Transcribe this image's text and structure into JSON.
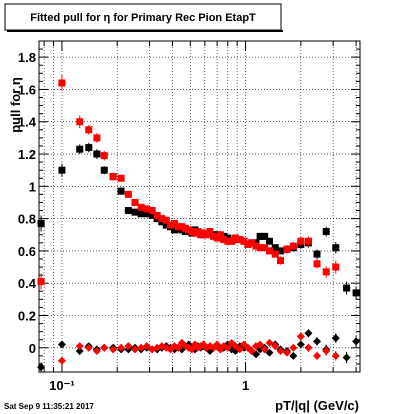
{
  "chart_data": {
    "type": "scatter",
    "title": "Fitted pull for  η for Primary Rec Pion EtapT",
    "xlabel": "pT/|q| (GeV/c)",
    "ylabel": "pull for η",
    "x_scale": "log",
    "xlim": [
      0.075,
      4.2
    ],
    "ylim": [
      -0.15,
      1.9
    ],
    "grid": true,
    "x_ticks": [
      {
        "value": 0.1,
        "label": "10⁻¹"
      },
      {
        "value": 1,
        "label": "1"
      }
    ],
    "y_ticks": [
      {
        "value": 0,
        "label": "0"
      },
      {
        "value": 0.2,
        "label": "0.2"
      },
      {
        "value": 0.4,
        "label": "0.4"
      },
      {
        "value": 0.6,
        "label": "0.6"
      },
      {
        "value": 0.8,
        "label": "0.8"
      },
      {
        "value": 1,
        "label": "1"
      },
      {
        "value": 1.2,
        "label": "1.2"
      },
      {
        "value": 1.4,
        "label": "1.4"
      },
      {
        "value": 1.6,
        "label": "1.6"
      },
      {
        "value": 1.8,
        "label": "1.8"
      }
    ],
    "series": [
      {
        "marker": "square",
        "color": "#000000",
        "x": [
          0.077,
          0.1,
          0.125,
          0.14,
          0.155,
          0.17,
          0.19,
          0.21,
          0.23,
          0.25,
          0.27,
          0.29,
          0.31,
          0.33,
          0.35,
          0.37,
          0.39,
          0.41,
          0.43,
          0.45,
          0.47,
          0.49,
          0.51,
          0.53,
          0.55,
          0.57,
          0.59,
          0.61,
          0.64,
          0.67,
          0.7,
          0.73,
          0.76,
          0.8,
          0.84,
          0.88,
          0.93,
          0.98,
          1.03,
          1.08,
          1.14,
          1.2,
          1.27,
          1.35,
          1.45,
          1.55,
          1.68,
          1.82,
          2.0,
          2.2,
          2.45,
          2.75,
          3.1,
          3.55,
          4.0
        ],
        "values": [
          0.77,
          1.1,
          1.23,
          1.24,
          1.2,
          1.1,
          1.06,
          0.97,
          0.85,
          0.84,
          0.83,
          0.83,
          0.82,
          0.8,
          0.78,
          0.76,
          0.75,
          0.73,
          0.74,
          0.73,
          0.72,
          0.72,
          0.71,
          0.73,
          0.72,
          0.71,
          0.7,
          0.71,
          0.71,
          0.7,
          0.7,
          0.68,
          0.69,
          0.68,
          0.66,
          0.67,
          0.67,
          0.66,
          0.64,
          0.65,
          0.65,
          0.69,
          0.69,
          0.66,
          0.62,
          0.6,
          0.61,
          0.62,
          0.64,
          0.65,
          0.58,
          0.72,
          0.62,
          0.37,
          0.34
        ],
        "errors": [
          0.05,
          0.04,
          0.03,
          0.03,
          0.03,
          0.025,
          0.02,
          0.02,
          0.02,
          0.02,
          0.02,
          0.015,
          0.015,
          0.015,
          0.015,
          0.015,
          0.015,
          0.015,
          0.015,
          0.015,
          0.015,
          0.015,
          0.015,
          0.015,
          0.015,
          0.015,
          0.015,
          0.015,
          0.015,
          0.015,
          0.015,
          0.015,
          0.015,
          0.015,
          0.015,
          0.015,
          0.015,
          0.015,
          0.02,
          0.02,
          0.02,
          0.02,
          0.02,
          0.02,
          0.02,
          0.02,
          0.025,
          0.025,
          0.025,
          0.03,
          0.03,
          0.03,
          0.035,
          0.04,
          0.04
        ]
      },
      {
        "marker": "square",
        "color": "#ff0000",
        "x": [
          0.077,
          0.1,
          0.125,
          0.14,
          0.155,
          0.17,
          0.19,
          0.21,
          0.23,
          0.25,
          0.27,
          0.29,
          0.31,
          0.33,
          0.35,
          0.37,
          0.39,
          0.41,
          0.43,
          0.45,
          0.47,
          0.49,
          0.51,
          0.53,
          0.55,
          0.57,
          0.59,
          0.61,
          0.64,
          0.67,
          0.7,
          0.73,
          0.76,
          0.8,
          0.84,
          0.88,
          0.93,
          0.98,
          1.03,
          1.08,
          1.14,
          1.2,
          1.27,
          1.35,
          1.45,
          1.55,
          1.68,
          1.82,
          2.0,
          2.2,
          2.45,
          2.75,
          3.1
        ],
        "values": [
          0.41,
          1.64,
          1.4,
          1.35,
          1.3,
          1.19,
          1.06,
          1.05,
          0.95,
          0.9,
          0.87,
          0.86,
          0.85,
          0.82,
          0.8,
          0.79,
          0.76,
          0.77,
          0.75,
          0.75,
          0.74,
          0.73,
          0.72,
          0.71,
          0.72,
          0.7,
          0.71,
          0.7,
          0.72,
          0.69,
          0.68,
          0.7,
          0.67,
          0.66,
          0.66,
          0.68,
          0.67,
          0.66,
          0.64,
          0.65,
          0.63,
          0.62,
          0.62,
          0.6,
          0.58,
          0.54,
          0.61,
          0.63,
          0.66,
          0.66,
          0.52,
          0.47,
          0.5
        ],
        "errors": [
          0.05,
          0.05,
          0.04,
          0.03,
          0.03,
          0.03,
          0.025,
          0.02,
          0.02,
          0.02,
          0.02,
          0.015,
          0.015,
          0.015,
          0.015,
          0.015,
          0.015,
          0.015,
          0.015,
          0.015,
          0.015,
          0.015,
          0.015,
          0.015,
          0.015,
          0.015,
          0.015,
          0.015,
          0.015,
          0.015,
          0.015,
          0.015,
          0.015,
          0.015,
          0.015,
          0.015,
          0.015,
          0.015,
          0.02,
          0.02,
          0.02,
          0.02,
          0.02,
          0.02,
          0.02,
          0.025,
          0.025,
          0.025,
          0.03,
          0.03,
          0.03,
          0.035,
          0.04
        ]
      },
      {
        "marker": "diamond",
        "color": "#000000",
        "x": [
          0.077,
          0.1,
          0.125,
          0.14,
          0.155,
          0.17,
          0.19,
          0.21,
          0.23,
          0.25,
          0.27,
          0.29,
          0.31,
          0.33,
          0.35,
          0.37,
          0.39,
          0.41,
          0.43,
          0.45,
          0.47,
          0.49,
          0.51,
          0.53,
          0.55,
          0.57,
          0.59,
          0.61,
          0.64,
          0.67,
          0.7,
          0.73,
          0.76,
          0.8,
          0.84,
          0.88,
          0.93,
          0.98,
          1.03,
          1.08,
          1.14,
          1.2,
          1.27,
          1.35,
          1.45,
          1.55,
          1.68,
          1.82,
          2.0,
          2.2,
          2.45,
          2.75,
          3.1,
          3.55,
          4.0
        ],
        "values": [
          -0.12,
          0.02,
          -0.02,
          0.01,
          -0.01,
          0.0,
          0.0,
          -0.01,
          -0.01,
          0.0,
          -0.01,
          0.0,
          -0.01,
          -0.01,
          0.0,
          0.01,
          0.0,
          -0.01,
          0.0,
          -0.01,
          0.01,
          0.02,
          0.0,
          -0.01,
          0.01,
          0.0,
          0.01,
          0.0,
          -0.02,
          0.0,
          0.01,
          -0.01,
          0.0,
          0.02,
          -0.01,
          -0.02,
          0.01,
          0.0,
          0.0,
          -0.02,
          -0.04,
          -0.01,
          0.0,
          -0.03,
          0.02,
          -0.01,
          -0.02,
          -0.05,
          0.02,
          0.09,
          0.04,
          -0.01,
          0.06,
          -0.06,
          0.04
        ],
        "errors": [
          0.03,
          0.02,
          0.02,
          0.02,
          0.015,
          0.015,
          0.015,
          0.015,
          0.015,
          0.01,
          0.01,
          0.01,
          0.01,
          0.01,
          0.01,
          0.01,
          0.01,
          0.01,
          0.01,
          0.01,
          0.01,
          0.01,
          0.01,
          0.01,
          0.01,
          0.01,
          0.01,
          0.01,
          0.01,
          0.01,
          0.01,
          0.01,
          0.01,
          0.01,
          0.01,
          0.01,
          0.015,
          0.015,
          0.015,
          0.015,
          0.015,
          0.015,
          0.015,
          0.015,
          0.02,
          0.02,
          0.02,
          0.02,
          0.025,
          0.025,
          0.025,
          0.03,
          0.03,
          0.035,
          0.035
        ]
      },
      {
        "marker": "diamond",
        "color": "#ff0000",
        "x": [
          0.1,
          0.125,
          0.14,
          0.155,
          0.17,
          0.19,
          0.21,
          0.23,
          0.25,
          0.27,
          0.29,
          0.31,
          0.33,
          0.35,
          0.37,
          0.39,
          0.41,
          0.43,
          0.45,
          0.47,
          0.49,
          0.51,
          0.53,
          0.55,
          0.57,
          0.59,
          0.61,
          0.64,
          0.67,
          0.7,
          0.73,
          0.76,
          0.8,
          0.84,
          0.88,
          0.93,
          0.98,
          1.03,
          1.08,
          1.14,
          1.2,
          1.27,
          1.35,
          1.45,
          1.55,
          1.68,
          1.82,
          2.0,
          2.2,
          2.45,
          2.75,
          3.1
        ],
        "values": [
          -0.08,
          0.01,
          0.0,
          -0.02,
          0.0,
          -0.01,
          0.0,
          0.01,
          -0.01,
          0.0,
          0.01,
          -0.01,
          0.0,
          0.01,
          0.0,
          -0.01,
          0.01,
          0.0,
          0.03,
          0.01,
          0.0,
          -0.01,
          0.02,
          0.0,
          0.01,
          0.02,
          0.0,
          0.01,
          0.0,
          0.02,
          -0.01,
          0.01,
          0.0,
          0.03,
          0.01,
          -0.01,
          0.02,
          0.0,
          -0.02,
          0.01,
          0.02,
          -0.01,
          0.03,
          0.01,
          -0.02,
          -0.03,
          0.0,
          0.07,
          0.0,
          -0.05,
          -0.02,
          -0.05
        ],
        "errors": [
          0.02,
          0.02,
          0.02,
          0.015,
          0.015,
          0.015,
          0.015,
          0.015,
          0.01,
          0.01,
          0.01,
          0.01,
          0.01,
          0.01,
          0.01,
          0.01,
          0.01,
          0.01,
          0.01,
          0.01,
          0.01,
          0.01,
          0.01,
          0.01,
          0.01,
          0.01,
          0.01,
          0.01,
          0.01,
          0.01,
          0.01,
          0.01,
          0.01,
          0.01,
          0.01,
          0.015,
          0.015,
          0.015,
          0.015,
          0.015,
          0.015,
          0.015,
          0.015,
          0.02,
          0.02,
          0.02,
          0.02,
          0.025,
          0.025,
          0.025,
          0.03,
          0.03
        ]
      }
    ]
  },
  "footer": {
    "timestamp": "Sat Sep  9 11:35:21 2017"
  }
}
